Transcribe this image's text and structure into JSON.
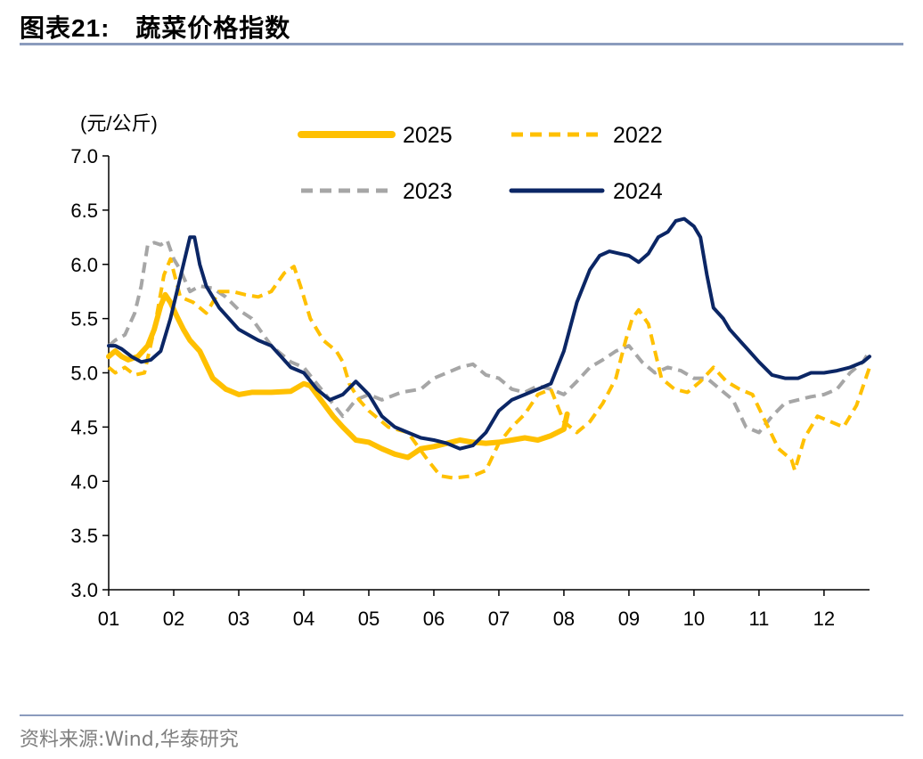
{
  "header": {
    "title_prefix": "图表",
    "title_number": "21:",
    "title_text": "蔬菜价格指数"
  },
  "footer": {
    "source": "资料来源:Wind,华泰研究"
  },
  "chart_data": {
    "type": "line",
    "title": "蔬菜价格指数",
    "ylabel": "(元/公斤)",
    "xlabel": "",
    "ylim": [
      3.0,
      7.0
    ],
    "yticks": [
      "3.0",
      "3.5",
      "4.0",
      "4.5",
      "5.0",
      "5.5",
      "6.0",
      "6.5",
      "7.0"
    ],
    "xlim": [
      1,
      12.7
    ],
    "xticks": [
      "01",
      "02",
      "03",
      "04",
      "05",
      "06",
      "07",
      "08",
      "09",
      "10",
      "11",
      "12"
    ],
    "grid": false,
    "legend_position": "top-center",
    "series": [
      {
        "name": "2025",
        "color": "#ffc000",
        "style": "solid",
        "x": [
          1.0,
          1.1,
          1.2,
          1.3,
          1.45,
          1.6,
          1.7,
          1.8,
          1.87,
          1.95,
          2.05,
          2.15,
          2.25,
          2.4,
          2.6,
          2.8,
          3.0,
          3.2,
          3.5,
          3.8,
          4.0,
          4.1,
          4.2,
          4.3,
          4.45,
          4.6,
          4.8,
          5.0,
          5.2,
          5.4,
          5.6,
          5.8,
          6.0,
          6.2,
          6.4,
          6.6,
          6.8,
          7.0,
          7.2,
          7.4,
          7.6,
          7.8,
          8.0,
          8.05
        ],
        "y": [
          5.15,
          5.2,
          5.15,
          5.12,
          5.15,
          5.25,
          5.4,
          5.62,
          5.72,
          5.65,
          5.52,
          5.4,
          5.3,
          5.2,
          4.95,
          4.85,
          4.8,
          4.82,
          4.82,
          4.83,
          4.9,
          4.88,
          4.8,
          4.72,
          4.6,
          4.5,
          4.38,
          4.36,
          4.3,
          4.25,
          4.22,
          4.3,
          4.32,
          4.35,
          4.38,
          4.36,
          4.35,
          4.36,
          4.38,
          4.4,
          4.38,
          4.42,
          4.48,
          4.62
        ]
      },
      {
        "name": "2022",
        "color": "#ffc000",
        "style": "dashed",
        "x": [
          1.0,
          1.1,
          1.25,
          1.4,
          1.55,
          1.7,
          1.85,
          1.95,
          2.1,
          2.3,
          2.5,
          2.7,
          2.9,
          3.1,
          3.3,
          3.5,
          3.7,
          3.85,
          3.95,
          4.1,
          4.3,
          4.5,
          4.6,
          4.7,
          4.85,
          5.0,
          5.3,
          5.6,
          5.9,
          6.1,
          6.3,
          6.6,
          6.8,
          7.0,
          7.2,
          7.4,
          7.6,
          7.8,
          8.0,
          8.2,
          8.4,
          8.6,
          8.8,
          8.95,
          9.05,
          9.15,
          9.3,
          9.5,
          9.7,
          9.9,
          10.1,
          10.3,
          10.5,
          10.7,
          10.9,
          11.1,
          11.3,
          11.5,
          11.55,
          11.7,
          11.9,
          12.1,
          12.3,
          12.5,
          12.7
        ],
        "y": [
          5.05,
          5.0,
          5.05,
          4.98,
          5.0,
          5.4,
          5.9,
          6.05,
          5.7,
          5.65,
          5.55,
          5.75,
          5.75,
          5.72,
          5.7,
          5.75,
          5.92,
          5.98,
          5.8,
          5.5,
          5.3,
          5.2,
          5.1,
          4.9,
          4.75,
          4.65,
          4.5,
          4.45,
          4.2,
          4.05,
          4.03,
          4.05,
          4.1,
          4.35,
          4.5,
          4.62,
          4.8,
          4.85,
          4.55,
          4.45,
          4.55,
          4.72,
          4.95,
          5.3,
          5.5,
          5.58,
          5.45,
          4.95,
          4.85,
          4.82,
          4.92,
          5.05,
          4.92,
          4.85,
          4.8,
          4.55,
          4.3,
          4.2,
          4.1,
          4.4,
          4.6,
          4.55,
          4.5,
          4.7,
          5.05
        ]
      },
      {
        "name": "2023",
        "color": "#a6a6a6",
        "style": "dashed",
        "x": [
          1.0,
          1.1,
          1.25,
          1.4,
          1.5,
          1.6,
          1.7,
          1.8,
          1.9,
          2.0,
          2.1,
          2.25,
          2.4,
          2.6,
          2.8,
          3.0,
          3.2,
          3.5,
          3.8,
          4.0,
          4.2,
          4.4,
          4.6,
          4.8,
          5.0,
          5.2,
          5.5,
          5.8,
          6.0,
          6.2,
          6.4,
          6.6,
          6.8,
          7.0,
          7.2,
          7.4,
          7.6,
          7.8,
          8.0,
          8.2,
          8.4,
          8.6,
          8.8,
          9.0,
          9.2,
          9.4,
          9.6,
          9.8,
          10.0,
          10.2,
          10.4,
          10.6,
          10.8,
          11.0,
          11.2,
          11.4,
          11.6,
          11.8,
          12.0,
          12.2,
          12.4,
          12.6,
          12.7
        ],
        "y": [
          5.25,
          5.3,
          5.35,
          5.55,
          5.8,
          6.18,
          6.2,
          6.18,
          6.22,
          6.05,
          5.95,
          5.75,
          5.8,
          5.78,
          5.7,
          5.58,
          5.5,
          5.25,
          5.1,
          5.05,
          4.9,
          4.75,
          4.6,
          4.75,
          4.8,
          4.75,
          4.82,
          4.85,
          4.95,
          5.0,
          5.05,
          5.08,
          4.98,
          4.95,
          4.85,
          4.82,
          4.88,
          4.85,
          4.8,
          4.92,
          5.05,
          5.12,
          5.2,
          5.25,
          5.1,
          5.0,
          5.05,
          5.02,
          4.95,
          4.95,
          4.85,
          4.75,
          4.5,
          4.45,
          4.6,
          4.72,
          4.75,
          4.78,
          4.8,
          4.85,
          5.0,
          5.1,
          5.2
        ]
      },
      {
        "name": "2024",
        "color": "#0b2665",
        "style": "solid",
        "x": [
          1.0,
          1.1,
          1.2,
          1.35,
          1.5,
          1.65,
          1.8,
          1.95,
          2.05,
          2.15,
          2.25,
          2.32,
          2.4,
          2.5,
          2.6,
          2.7,
          2.85,
          3.0,
          3.15,
          3.3,
          3.5,
          3.65,
          3.8,
          4.0,
          4.2,
          4.4,
          4.6,
          4.8,
          5.0,
          5.2,
          5.4,
          5.6,
          5.8,
          6.0,
          6.2,
          6.4,
          6.6,
          6.8,
          7.0,
          7.2,
          7.4,
          7.6,
          7.8,
          8.0,
          8.2,
          8.4,
          8.55,
          8.7,
          8.85,
          9.0,
          9.15,
          9.3,
          9.45,
          9.6,
          9.72,
          9.85,
          10.0,
          10.1,
          10.2,
          10.3,
          10.45,
          10.55,
          10.7,
          10.85,
          11.0,
          11.2,
          11.4,
          11.6,
          11.8,
          12.0,
          12.2,
          12.4,
          12.6,
          12.7
        ],
        "y": [
          5.25,
          5.25,
          5.22,
          5.15,
          5.1,
          5.12,
          5.2,
          5.5,
          5.75,
          6.0,
          6.25,
          6.25,
          6.0,
          5.8,
          5.7,
          5.6,
          5.5,
          5.4,
          5.35,
          5.3,
          5.25,
          5.15,
          5.05,
          5.0,
          4.85,
          4.75,
          4.8,
          4.92,
          4.8,
          4.6,
          4.5,
          4.45,
          4.4,
          4.38,
          4.35,
          4.3,
          4.33,
          4.45,
          4.65,
          4.75,
          4.8,
          4.85,
          4.9,
          5.2,
          5.65,
          5.95,
          6.08,
          6.12,
          6.1,
          6.08,
          6.02,
          6.1,
          6.25,
          6.3,
          6.4,
          6.42,
          6.35,
          6.25,
          5.9,
          5.6,
          5.5,
          5.4,
          5.3,
          5.2,
          5.1,
          4.98,
          4.95,
          4.95,
          5.0,
          5.0,
          5.02,
          5.05,
          5.1,
          5.15
        ]
      }
    ]
  }
}
